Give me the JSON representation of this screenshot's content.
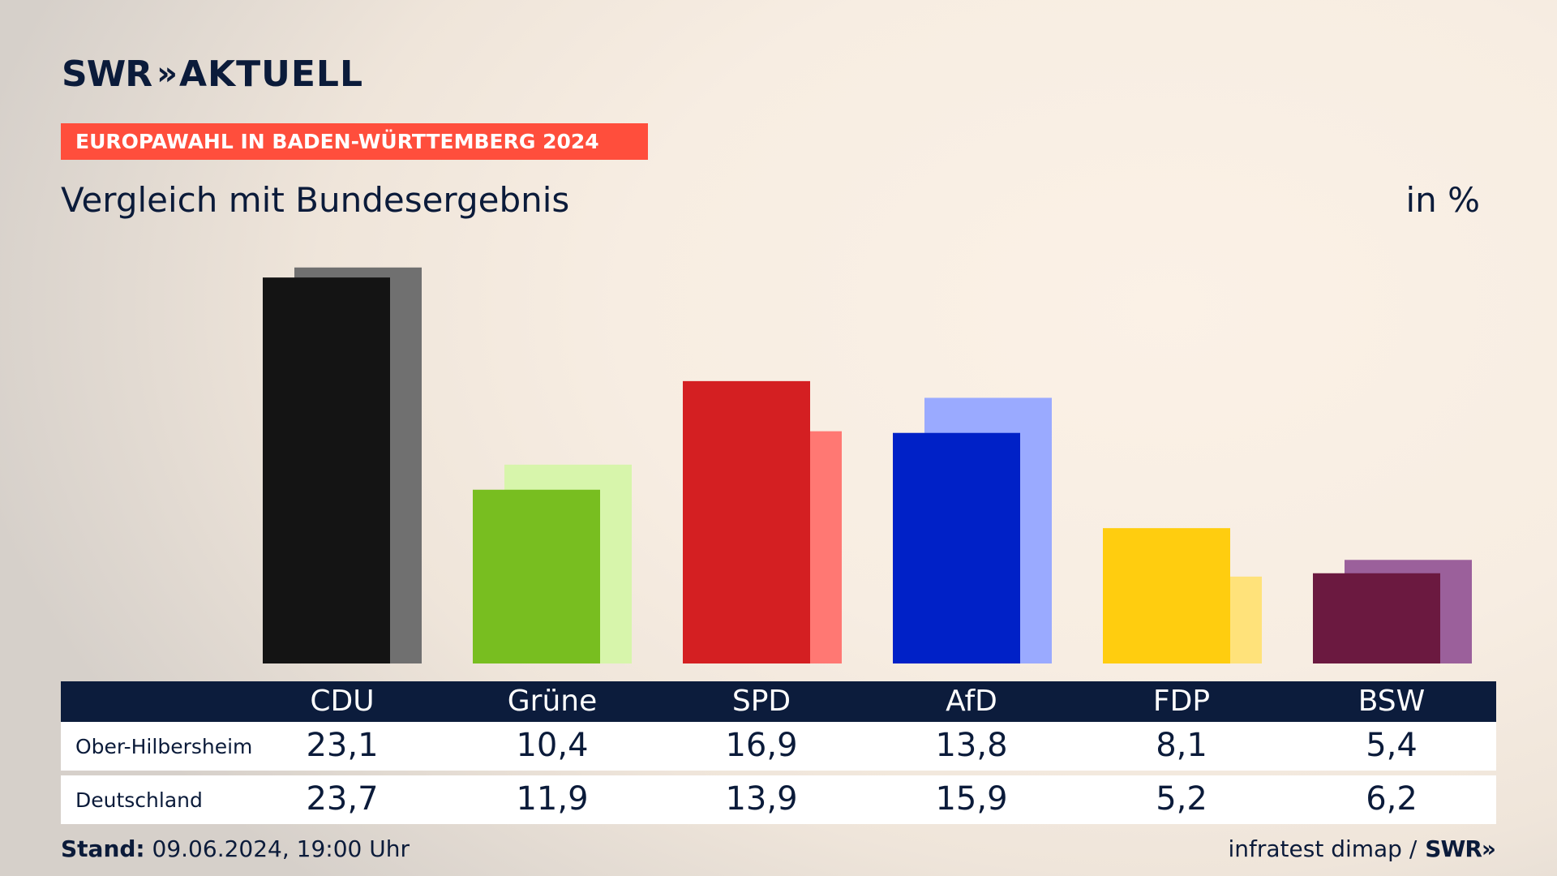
{
  "header": {
    "logo_main": "SWR",
    "logo_arrows": "»",
    "logo_sub": "AKTUELL",
    "banner": "EUROPAWAHL IN BADEN-WÜRTTEMBERG 2024",
    "subtitle": "Vergleich mit Bundesergebnis",
    "unit": "in %"
  },
  "chart_data": {
    "type": "bar",
    "categories": [
      "CDU",
      "Grüne",
      "SPD",
      "AfD",
      "FDP",
      "BSW"
    ],
    "series": [
      {
        "name": "Ober-Hilbersheim",
        "values": [
          23.1,
          10.4,
          16.9,
          13.8,
          8.1,
          5.4
        ],
        "colors": [
          "#141414",
          "#78be20",
          "#d41f22",
          "#0021c7",
          "#ffcd0f",
          "#6b1940"
        ]
      },
      {
        "name": "Deutschland",
        "values": [
          23.7,
          11.9,
          13.9,
          15.9,
          5.2,
          6.2
        ],
        "colors": [
          "#707070",
          "#d7f5ab",
          "#ff7873",
          "#9aaaff",
          "#ffe27a",
          "#9b609b"
        ]
      }
    ],
    "ylim": [
      0,
      24
    ]
  },
  "table": {
    "rows": [
      {
        "label": "Ober-Hilbersheim",
        "values": [
          "23,1",
          "10,4",
          "16,9",
          "13,8",
          "8,1",
          "5,4"
        ]
      },
      {
        "label": "Deutschland",
        "values": [
          "23,7",
          "11,9",
          "13,9",
          "15,9",
          "5,2",
          "6,2"
        ]
      }
    ]
  },
  "footer": {
    "stand_label": "Stand:",
    "stand_value": "09.06.2024, 19:00 Uhr",
    "source": "infratest dimap /",
    "source_logo": "SWR»"
  }
}
